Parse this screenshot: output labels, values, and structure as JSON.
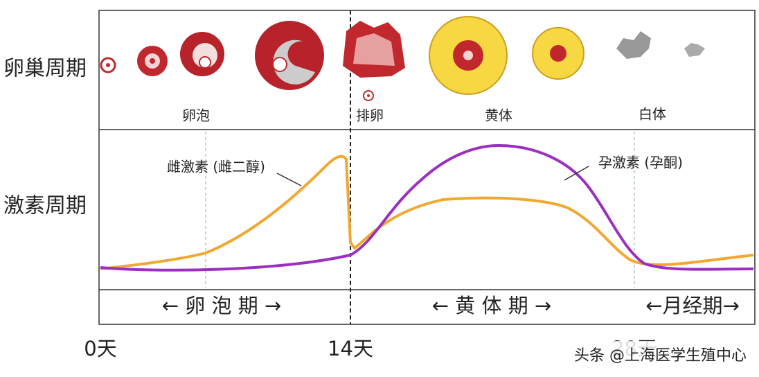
{
  "side_labels": [
    "卵巢周期",
    "激素周期"
  ],
  "ovary_stages": [
    "卵泡",
    "排卵",
    "黄体",
    "白体"
  ],
  "hormones": {
    "estrogen": "雌激素 (雌二醇)",
    "progesterone": "孕激素 (孕酮)"
  },
  "phases": [
    "← 卵 泡 期 →",
    "← 黄 体 期 →",
    "←月经期→"
  ],
  "days": [
    "0天",
    "14天",
    "28天"
  ],
  "watermark": "头条 @上海医学生殖中心"
}
